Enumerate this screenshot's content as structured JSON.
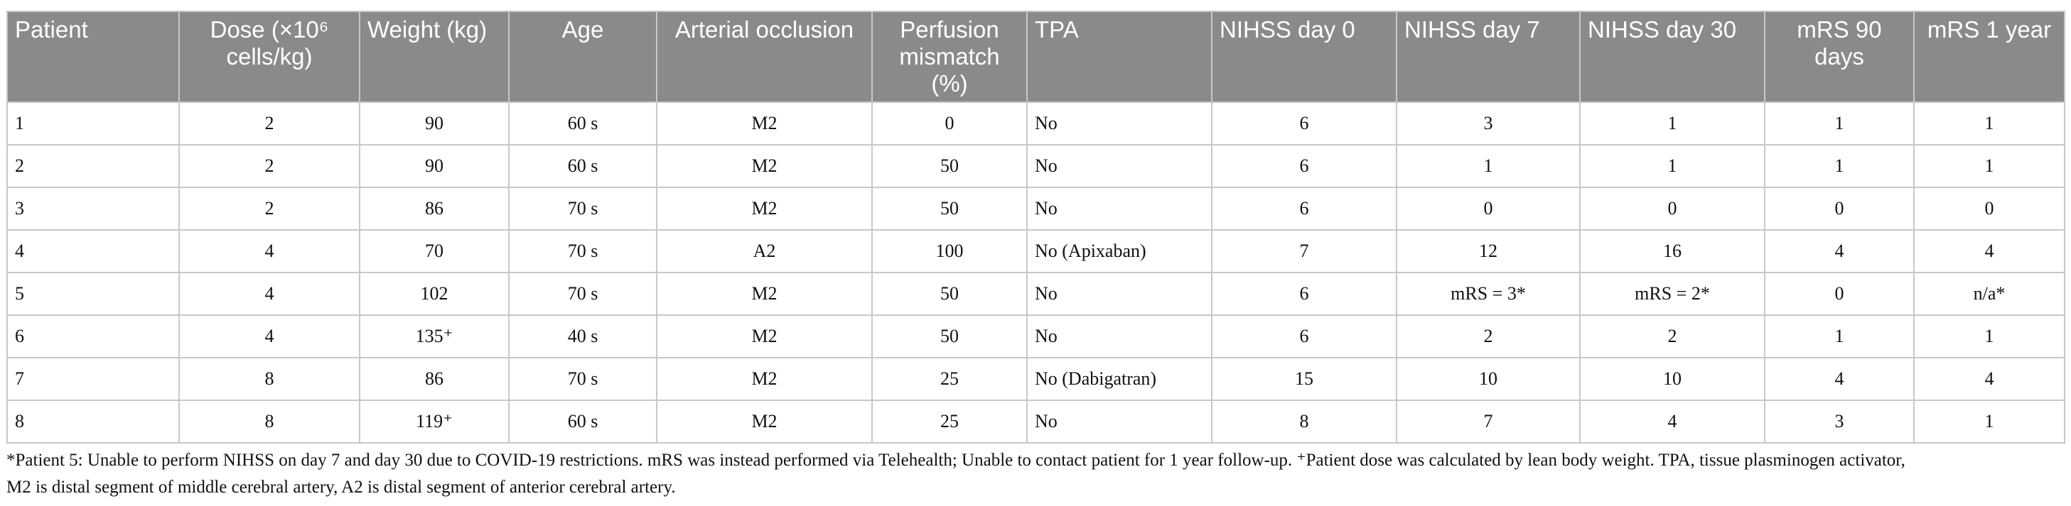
{
  "table": {
    "header": [
      "Patient",
      "Dose (×10⁶ cells/kg)",
      "Weight (kg)",
      "Age",
      "Arterial occlusion",
      "Perfusion mismatch (%)",
      "TPA",
      "NIHSS day 0",
      "NIHSS day 7",
      "NIHSS day 30",
      "mRS 90 days",
      "mRS 1 year"
    ],
    "rows": [
      [
        "1",
        "2",
        "90",
        "60 s",
        "M2",
        "0",
        "No",
        "6",
        "3",
        "1",
        "1",
        "1"
      ],
      [
        "2",
        "2",
        "90",
        "60 s",
        "M2",
        "50",
        "No",
        "6",
        "1",
        "1",
        "1",
        "1"
      ],
      [
        "3",
        "2",
        "86",
        "70 s",
        "M2",
        "50",
        "No",
        "6",
        "0",
        "0",
        "0",
        "0"
      ],
      [
        "4",
        "4",
        "70",
        "70 s",
        "A2",
        "100",
        "No (Apixaban)",
        "7",
        "12",
        "16",
        "4",
        "4"
      ],
      [
        "5",
        "4",
        "102",
        "70 s",
        "M2",
        "50",
        "No",
        "6",
        "mRS = 3*",
        "mRS = 2*",
        "0",
        "n/a*"
      ],
      [
        "6",
        "4",
        "135⁺",
        "40 s",
        "M2",
        "50",
        "No",
        "6",
        "2",
        "2",
        "1",
        "1"
      ],
      [
        "7",
        "8",
        "86",
        "70 s",
        "M2",
        "25",
        "No (Dabigatran)",
        "15",
        "10",
        "10",
        "4",
        "4"
      ],
      [
        "8",
        "8",
        "119⁺",
        "60 s",
        "M2",
        "25",
        "No",
        "8",
        "7",
        "4",
        "3",
        "1"
      ]
    ]
  },
  "footnote": [
    "*Patient 5: Unable to perform NIHSS on day 7 and day 30 due to COVID-19 restrictions. mRS was instead performed via Telehealth; Unable to contact patient for 1 year follow-up. ⁺Patient dose was calculated by lean body weight. TPA, tissue plasminogen activator,",
    "M2 is distal segment of middle cerebral artery, A2 is distal segment of anterior cerebral artery."
  ]
}
